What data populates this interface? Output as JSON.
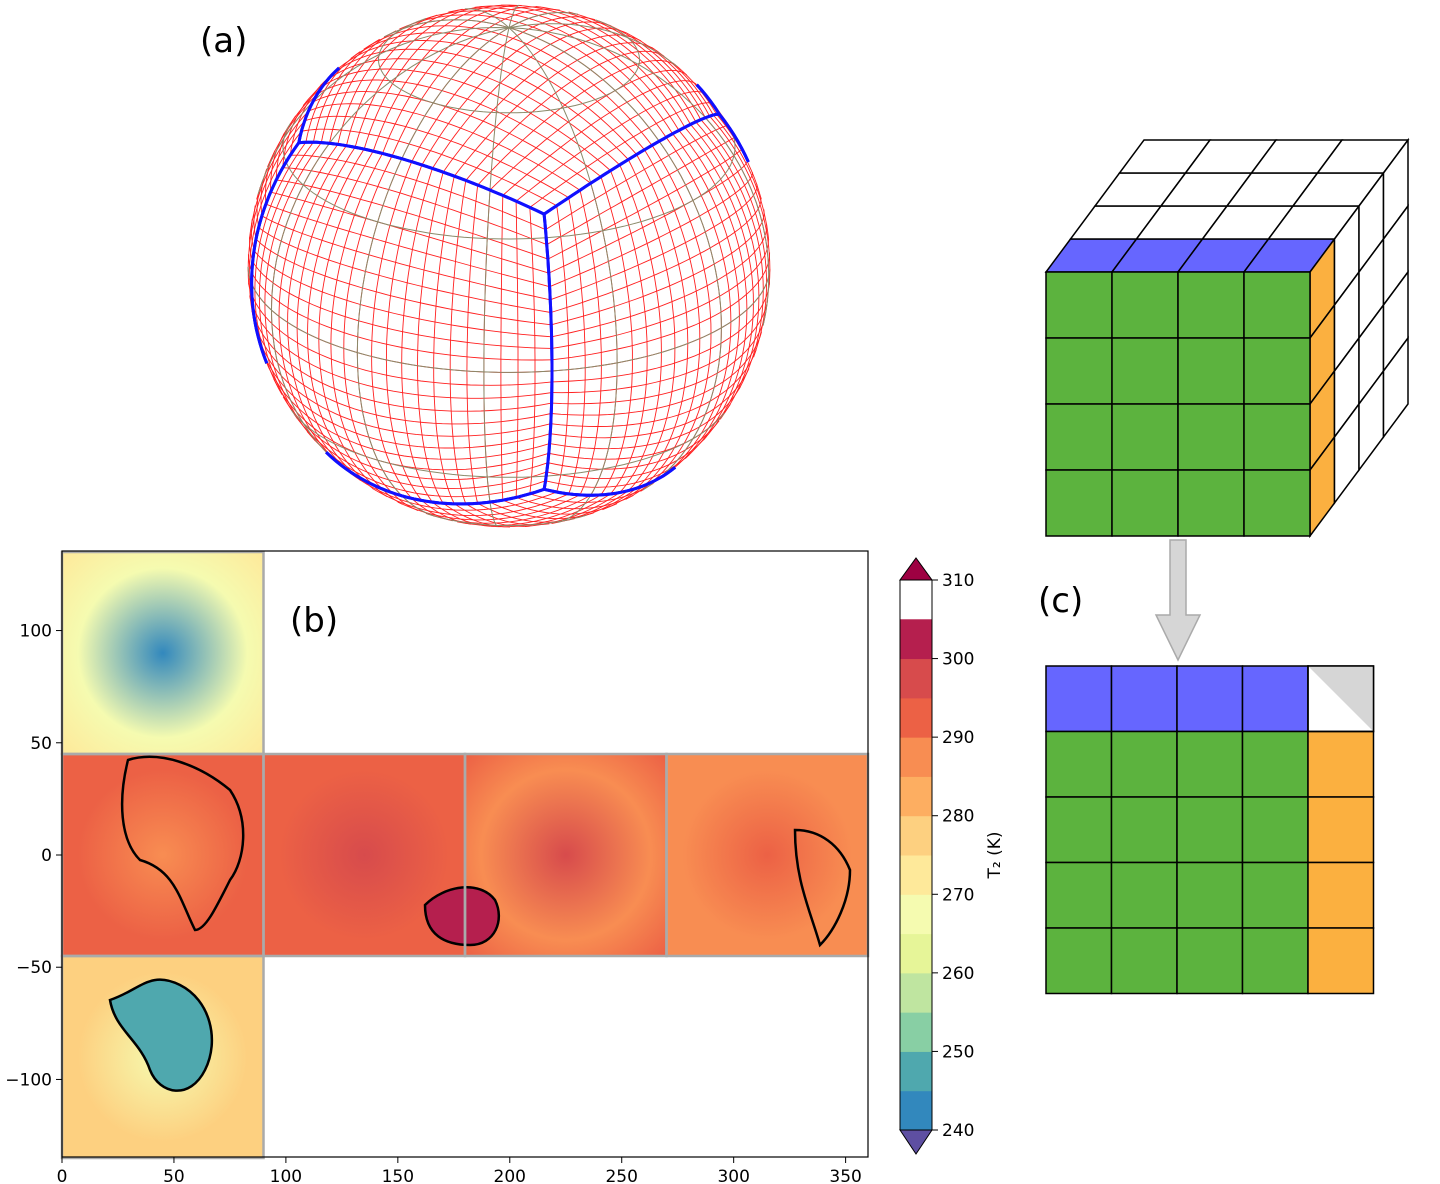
{
  "panels": {
    "a": {
      "label": "(a)"
    },
    "b": {
      "label": "(b)"
    },
    "c": {
      "label": "(c)"
    }
  },
  "chart_data": {
    "type": "heatmap",
    "x_ticks": [
      "0",
      "50",
      "100",
      "150",
      "200",
      "250",
      "300",
      "350"
    ],
    "x_tick_values": [
      0,
      50,
      100,
      150,
      200,
      250,
      300,
      350
    ],
    "y_ticks": [
      "100",
      "50",
      "0",
      "−50",
      "−100"
    ],
    "y_tick_values": [
      100,
      50,
      0,
      -50,
      -100
    ],
    "xlim": [
      0,
      360
    ],
    "ylim": [
      -135,
      135
    ],
    "faces": [
      {
        "x": [
          0,
          90
        ],
        "y": [
          45,
          135
        ]
      },
      {
        "x": [
          0,
          90
        ],
        "y": [
          -45,
          45
        ]
      },
      {
        "x": [
          90,
          180
        ],
        "y": [
          -45,
          45
        ]
      },
      {
        "x": [
          180,
          270
        ],
        "y": [
          -45,
          45
        ]
      },
      {
        "x": [
          270,
          360
        ],
        "y": [
          -45,
          45
        ]
      },
      {
        "x": [
          0,
          90
        ],
        "y": [
          -135,
          -45
        ]
      }
    ],
    "colorbar": {
      "label": "T₂ (K)",
      "ticks": [
        "240",
        "250",
        "260",
        "270",
        "280",
        "290",
        "300",
        "310"
      ],
      "range": [
        240,
        310
      ],
      "extend": "both",
      "colors": [
        "#5e4fa2",
        "#3288bd",
        "#4fa8ae",
        "#88cfa4",
        "#bfe5a0",
        "#e6f598",
        "#f5fbb0",
        "#fee99a",
        "#fdd080",
        "#fdae61",
        "#f88d52",
        "#ec6145",
        "#d74b4c",
        "#b51f4e",
        "#9e0142"
      ]
    }
  },
  "colors": {
    "grid_red": "#ff2020",
    "latlon_grey": "#8a8a6a",
    "face_edge_blue": "#1010ff",
    "cube_green": "#5cb33e",
    "cube_blue": "#6666ff",
    "cube_orange": "#fbb040",
    "face_border_grey": "#aaaaaa"
  }
}
